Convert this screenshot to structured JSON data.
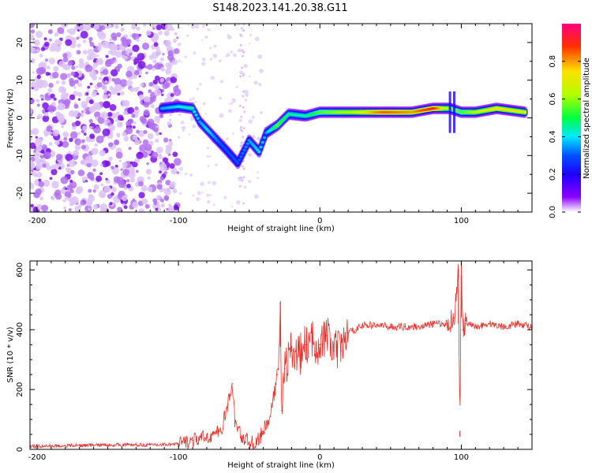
{
  "title": "S148.2023.141.20.38.G11",
  "colors": {
    "snr_line": "#e8302a",
    "axis": "#000000",
    "noise_purple": "#8a2be2"
  },
  "chart_data": [
    {
      "type": "heatmap",
      "title": "S148.2023.141.20.38.G11",
      "xlabel": "Height of straight line (km)",
      "ylabel": "Frequency (Hz)",
      "xlim": [
        -205,
        150
      ],
      "ylim": [
        -25,
        25
      ],
      "xticks": [
        -200,
        -100,
        0,
        100
      ],
      "yticks": [
        -20,
        -10,
        0,
        10,
        20
      ],
      "colorbar": {
        "label": "Normalized spectral amplitude",
        "range": [
          0.0,
          1.0
        ],
        "ticks": [
          "0.0",
          "0.2",
          "0.4",
          "0.6",
          "0.8"
        ],
        "colormap": [
          "#ffffff",
          "#8a00ff",
          "#1e00ff",
          "#0050ff",
          "#00e8ff",
          "#00ff40",
          "#b0ff00",
          "#ffe000",
          "#ff3000",
          "#ff0080"
        ]
      },
      "ridge": [
        {
          "x": -112,
          "y": 2.5,
          "v": 0.35
        },
        {
          "x": -100,
          "y": 3,
          "v": 0.4
        },
        {
          "x": -90,
          "y": 2.5,
          "v": 0.45
        },
        {
          "x": -85,
          "y": -1,
          "v": 0.35
        },
        {
          "x": -80,
          "y": -3,
          "v": 0.4
        },
        {
          "x": -75,
          "y": -5,
          "v": 0.35
        },
        {
          "x": -70,
          "y": -7,
          "v": 0.3
        },
        {
          "x": -65,
          "y": -9,
          "v": 0.3
        },
        {
          "x": -58,
          "y": -12,
          "v": 0.3
        },
        {
          "x": -50,
          "y": -6,
          "v": 0.35
        },
        {
          "x": -43,
          "y": -9,
          "v": 0.4
        },
        {
          "x": -38,
          "y": -4,
          "v": 0.35
        },
        {
          "x": -30,
          "y": -2,
          "v": 0.55
        },
        {
          "x": -22,
          "y": 1,
          "v": 0.45
        },
        {
          "x": -10,
          "y": 0.5,
          "v": 0.45
        },
        {
          "x": 0,
          "y": 1.5,
          "v": 0.55
        },
        {
          "x": 20,
          "y": 1.5,
          "v": 0.65
        },
        {
          "x": 45,
          "y": 1.5,
          "v": 0.85
        },
        {
          "x": 65,
          "y": 1.5,
          "v": 0.8
        },
        {
          "x": 80,
          "y": 2.5,
          "v": 0.9
        },
        {
          "x": 92,
          "y": 2.5,
          "v": 0.6
        },
        {
          "x": 100,
          "y": 1.5,
          "v": 0.55
        },
        {
          "x": 110,
          "y": 1.5,
          "v": 0.65
        },
        {
          "x": 125,
          "y": 2.5,
          "v": 0.75
        },
        {
          "x": 145,
          "y": 1.5,
          "v": 0.7
        }
      ]
    },
    {
      "type": "line",
      "xlabel": "Height of straight line (km)",
      "ylabel": "SNR (10 * v/v)",
      "xlim": [
        -205,
        150
      ],
      "ylim": [
        0,
        630
      ],
      "xticks": [
        -200,
        -100,
        0,
        100
      ],
      "yticks": [
        0,
        200,
        400,
        600
      ],
      "series": [
        {
          "x": [
            -205,
            -180,
            -150,
            -120,
            -100,
            -90,
            -80,
            -70,
            -65,
            -62,
            -60,
            -55,
            -50,
            -45,
            -40,
            -35,
            -30,
            -28,
            -27,
            -25,
            -20,
            -15,
            -10,
            -5,
            0,
            5,
            10,
            15,
            20,
            25,
            30,
            40,
            50,
            60,
            70,
            80,
            90,
            95,
            98,
            99,
            100,
            101,
            103,
            110,
            120,
            130,
            140,
            150
          ],
          "y": [
            10,
            12,
            15,
            15,
            18,
            30,
            40,
            60,
            150,
            220,
            90,
            40,
            25,
            20,
            60,
            110,
            250,
            490,
            130,
            270,
            330,
            310,
            350,
            360,
            350,
            380,
            330,
            330,
            390,
            400,
            415,
            415,
            410,
            410,
            410,
            420,
            420,
            440,
            600,
            60,
            630,
            400,
            420,
            410,
            420,
            410,
            420,
            410
          ]
        }
      ]
    }
  ]
}
